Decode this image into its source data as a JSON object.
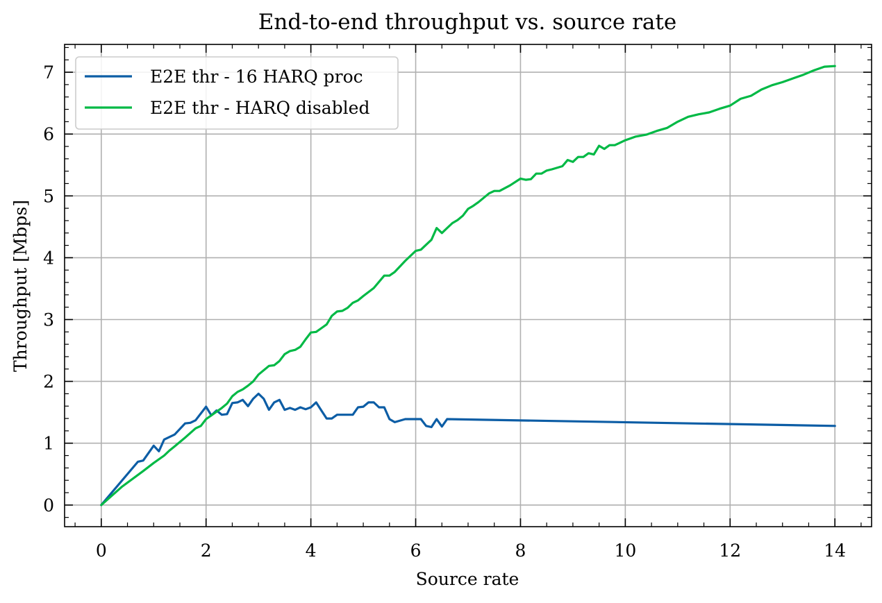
{
  "chart_data": {
    "type": "line",
    "title": "End-to-end throughput vs. source rate",
    "xlabel": "Source rate",
    "ylabel": "Throughput [Mbps]",
    "xlim": [
      -0.7,
      14.7
    ],
    "ylim": [
      -0.35,
      7.45
    ],
    "xticks": [
      0,
      2,
      4,
      6,
      8,
      10,
      12,
      14
    ],
    "yticks": [
      0,
      1,
      2,
      3,
      4,
      5,
      6,
      7
    ],
    "grid": true,
    "legend_position": "top-left",
    "series": [
      {
        "name": "E2E thr - 16 HARQ proc",
        "color": "#0C5DA5",
        "x": [
          0,
          0.7,
          0.8,
          1.0,
          1.1,
          1.2,
          1.3,
          1.4,
          1.6,
          1.7,
          1.8,
          2.0,
          2.1,
          2.2,
          2.3,
          2.4,
          2.5,
          2.6,
          2.7,
          2.8,
          2.9,
          3.0,
          3.1,
          3.2,
          3.3,
          3.4,
          3.5,
          3.6,
          3.7,
          3.8,
          3.9,
          4.0,
          4.1,
          4.2,
          4.3,
          4.4,
          4.5,
          4.6,
          4.8,
          4.9,
          5.0,
          5.1,
          5.2,
          5.3,
          5.4,
          5.5,
          5.6,
          5.8,
          6.0,
          6.1,
          6.2,
          6.3,
          6.4,
          6.5,
          6.6,
          14.0
        ],
        "values": [
          0,
          0.7,
          0.72,
          0.96,
          0.87,
          1.06,
          1.1,
          1.14,
          1.32,
          1.33,
          1.37,
          1.59,
          1.45,
          1.53,
          1.46,
          1.47,
          1.65,
          1.66,
          1.7,
          1.6,
          1.72,
          1.8,
          1.72,
          1.54,
          1.66,
          1.7,
          1.54,
          1.57,
          1.54,
          1.58,
          1.55,
          1.58,
          1.66,
          1.53,
          1.4,
          1.4,
          1.46,
          1.46,
          1.46,
          1.58,
          1.59,
          1.66,
          1.66,
          1.58,
          1.58,
          1.39,
          1.34,
          1.39,
          1.39,
          1.39,
          1.28,
          1.26,
          1.39,
          1.27,
          1.39,
          1.28
        ]
      },
      {
        "name": "E2E thr - HARQ disabled",
        "color": "#00B945",
        "x": [
          0,
          0.4,
          0.8,
          1.0,
          1.2,
          1.3,
          1.4,
          1.6,
          1.8,
          1.9,
          2.0,
          2.2,
          2.3,
          2.4,
          2.5,
          2.6,
          2.7,
          2.8,
          2.9,
          3.0,
          3.2,
          3.3,
          3.4,
          3.5,
          3.6,
          3.7,
          3.8,
          3.9,
          4.0,
          4.1,
          4.2,
          4.3,
          4.4,
          4.5,
          4.6,
          4.7,
          4.8,
          4.9,
          5.0,
          5.2,
          5.4,
          5.5,
          5.6,
          5.8,
          6.0,
          6.1,
          6.2,
          6.3,
          6.4,
          6.5,
          6.6,
          6.7,
          6.8,
          6.9,
          7.0,
          7.1,
          7.2,
          7.4,
          7.5,
          7.6,
          7.8,
          8.0,
          8.1,
          8.2,
          8.3,
          8.4,
          8.5,
          8.6,
          8.8,
          8.9,
          9.0,
          9.1,
          9.2,
          9.3,
          9.4,
          9.5,
          9.6,
          9.7,
          9.8,
          9.9,
          10.0,
          10.2,
          10.4,
          10.6,
          10.8,
          11.0,
          11.2,
          11.4,
          11.6,
          11.8,
          12.0,
          12.2,
          12.4,
          12.6,
          12.8,
          13.0,
          13.2,
          13.4,
          13.6,
          13.8,
          14.0
        ],
        "values": [
          0,
          0.3,
          0.55,
          0.68,
          0.8,
          0.88,
          0.95,
          1.09,
          1.24,
          1.28,
          1.39,
          1.51,
          1.57,
          1.64,
          1.76,
          1.83,
          1.87,
          1.93,
          2.0,
          2.11,
          2.25,
          2.26,
          2.33,
          2.44,
          2.49,
          2.51,
          2.56,
          2.68,
          2.79,
          2.8,
          2.86,
          2.92,
          3.06,
          3.13,
          3.14,
          3.19,
          3.27,
          3.31,
          3.38,
          3.51,
          3.71,
          3.71,
          3.77,
          3.95,
          4.11,
          4.13,
          4.21,
          4.29,
          4.48,
          4.4,
          4.48,
          4.56,
          4.61,
          4.68,
          4.79,
          4.84,
          4.9,
          5.04,
          5.08,
          5.08,
          5.17,
          5.28,
          5.26,
          5.27,
          5.36,
          5.36,
          5.41,
          5.43,
          5.48,
          5.58,
          5.55,
          5.63,
          5.63,
          5.69,
          5.67,
          5.81,
          5.76,
          5.82,
          5.82,
          5.86,
          5.9,
          5.96,
          5.99,
          6.05,
          6.1,
          6.2,
          6.28,
          6.32,
          6.35,
          6.41,
          6.46,
          6.57,
          6.62,
          6.72,
          6.79,
          6.84,
          6.9,
          6.96,
          7.03,
          7.09,
          7.1
        ]
      }
    ]
  }
}
